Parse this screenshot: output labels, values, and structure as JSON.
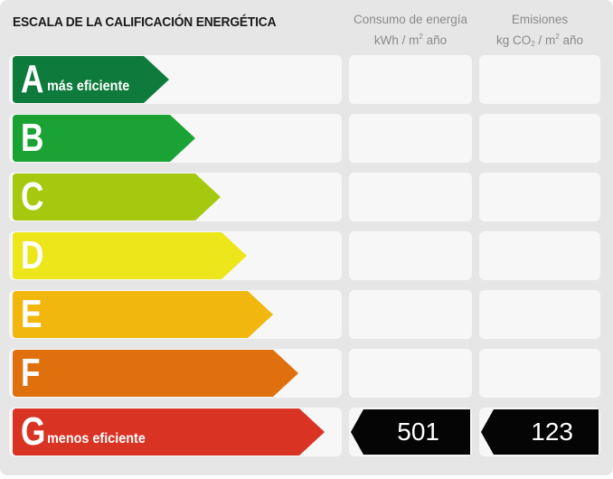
{
  "header": {
    "title": "ESCALA DE LA CALIFICACIÓN ENERGÉTICA",
    "energy_line1": "Consumo de energía",
    "energy_line2_pre": "kWh / m",
    "energy_line2_sup": "2",
    "energy_line2_post": " año",
    "emis_line1": "Emisiones",
    "emis_line2_pre": "kg CO",
    "emis_line2_sub": "2",
    "emis_line2_mid": " / m",
    "emis_line2_sup": "2",
    "emis_line2_post": " año"
  },
  "ratings": [
    {
      "letter": "A",
      "sub": "más eficiente",
      "color": "#0e7a3b"
    },
    {
      "letter": "B",
      "sub": "",
      "color": "#1aa334"
    },
    {
      "letter": "C",
      "sub": "",
      "color": "#a6c90f"
    },
    {
      "letter": "D",
      "sub": "",
      "color": "#ece61a"
    },
    {
      "letter": "E",
      "sub": "",
      "color": "#f2b70f"
    },
    {
      "letter": "F",
      "sub": "",
      "color": "#e0700d"
    },
    {
      "letter": "G",
      "sub": "menos eficiente",
      "color": "#d93323"
    }
  ],
  "result": {
    "rating": "G",
    "energy_value": "501",
    "emissions_value": "123",
    "tag_color": "#050505"
  }
}
